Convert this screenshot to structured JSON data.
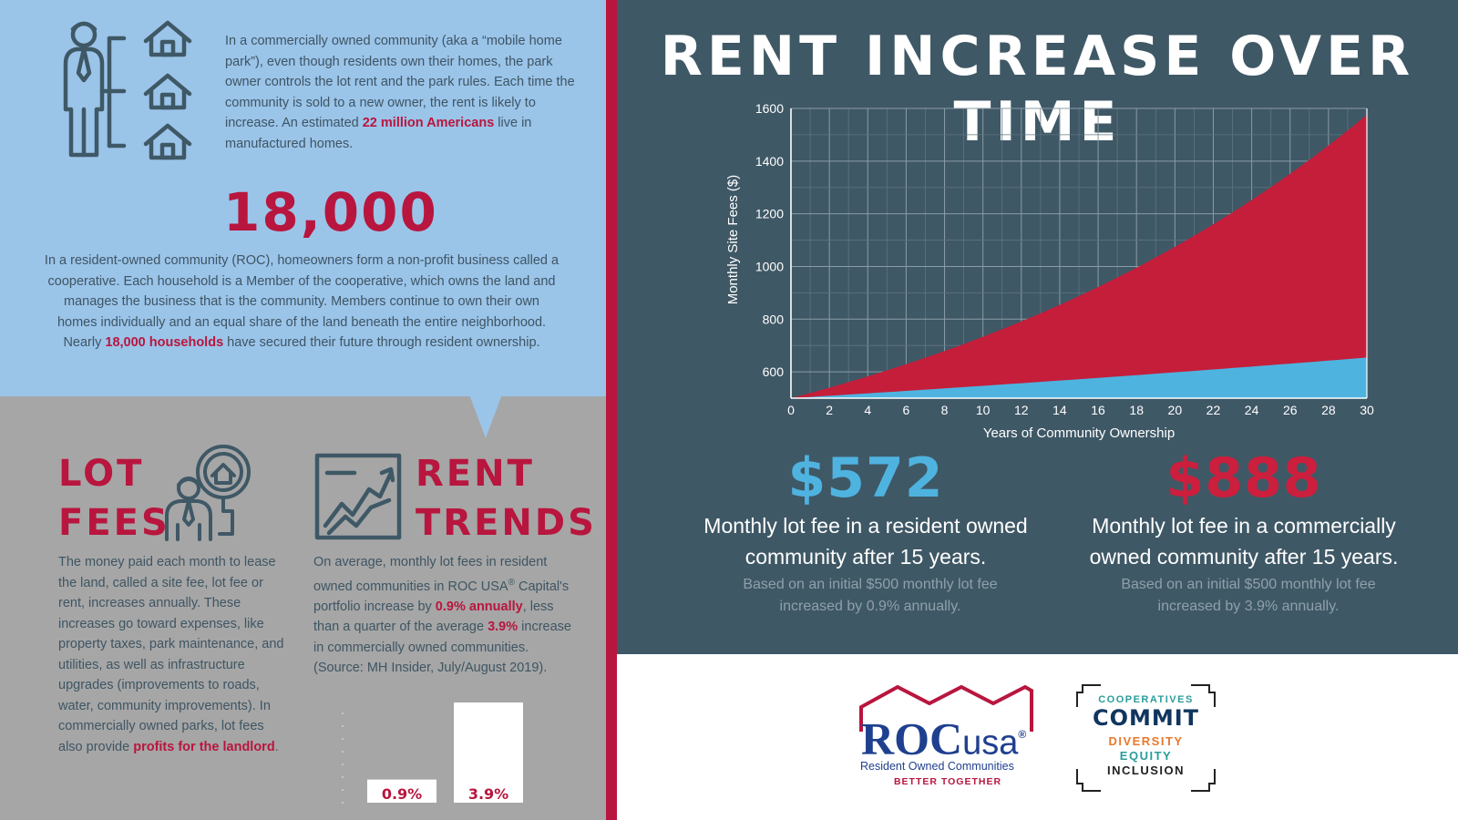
{
  "intro": {
    "text_1": "In a commercially owned community (aka a “mobile home park”), even though residents own their homes, the park owner controls the lot rent and the park rules. Each time the community is sold to a new owner, the rent is likely to increase. An estimated ",
    "highlight": "22 million Americans",
    "text_2": " live in manufactured homes."
  },
  "stat": {
    "value": "18,000"
  },
  "roc": {
    "text_1": "In a resident-owned community (ROC), homeowners form a non-profit business called a cooperative. Each household is a Member of the cooperative, which owns the land and manages the business that is the community. Members continue to own their own homes individually and an equal share of the land beneath the entire neighborhood. Nearly ",
    "highlight": "18,000 households",
    "text_2": " have secured their future through resident ownership."
  },
  "lot_fees": {
    "title_line1": "LOT",
    "title_line2": "FEES",
    "text_1": "The money paid each month to lease the land, called a site fee, lot fee or rent, increases annually. These increases go toward expenses, like property taxes, park maintenance, and utilities, as well as infrastructure upgrades (improvements to roads, water, community improvements). In commercially owned parks, lot fees also provide ",
    "highlight": "profits for the landlord",
    "text_2": "."
  },
  "rent_trends": {
    "title_line1": "RENT",
    "title_line2": "TRENDS",
    "text_1": "On average, monthly lot fees in resident owned communities in ROC USA",
    "reg": "®",
    "text_2": " Capital's portfolio increase by ",
    "highlight_1": "0.9% annually",
    "text_3": ", less than a quarter of the average ",
    "highlight_2": "3.9%",
    "text_4": " increase in commercially owned communities. (Source: MH Insider, July/August 2019)."
  },
  "mini_chart": {
    "bars": [
      {
        "label": "0.9%",
        "value": 0.9
      },
      {
        "label": "3.9%",
        "value": 3.9
      }
    ]
  },
  "chart_data": {
    "type": "area",
    "title": "RENT INCREASE OVER TIME",
    "xlabel": "Years of Community Ownership",
    "ylabel": "Monthly Site Fees ($)",
    "xlim": [
      0,
      30
    ],
    "ylim": [
      500,
      1600
    ],
    "x_ticks": [
      0,
      2,
      4,
      6,
      8,
      10,
      12,
      14,
      16,
      18,
      20,
      22,
      24,
      26,
      28,
      30
    ],
    "y_ticks": [
      600,
      800,
      1000,
      1200,
      1400,
      1600
    ],
    "grid": true,
    "base": 500,
    "series": [
      {
        "rate": 0.039,
        "color": "#c41e3a"
      },
      {
        "rate": 0.009,
        "color": "#4fb3e0"
      }
    ]
  },
  "results": {
    "roc": {
      "amount": "$572",
      "caption": "Monthly lot fee in a resident owned community after 15 years.",
      "note": "Based on an initial $500 monthly lot fee increased by 0.9% annually."
    },
    "commercial": {
      "amount": "$888",
      "caption": "Monthly lot fee in a commercially owned community after 15 years.",
      "note": "Based on an initial $500 monthly lot fee increased by 3.9% annually."
    }
  },
  "logos": {
    "roc_name_1": "ROC",
    "roc_name_2": "usa",
    "roc_reg": "®",
    "roc_sub": "Resident Owned Communities",
    "roc_tag": "BETTER TOGETHER",
    "commit_line1": "COOPERATIVES",
    "commit_line2": "COMMIT",
    "commit_line3": "DIVERSITY",
    "commit_line4": "EQUITY",
    "commit_line5": "INCLUSION"
  },
  "colors": {
    "light_blue": "#9bc4e9",
    "gray": "#a6a6a6",
    "crimson": "#b8163e",
    "slate": "#3f5866",
    "sky": "#4fb3e0"
  }
}
